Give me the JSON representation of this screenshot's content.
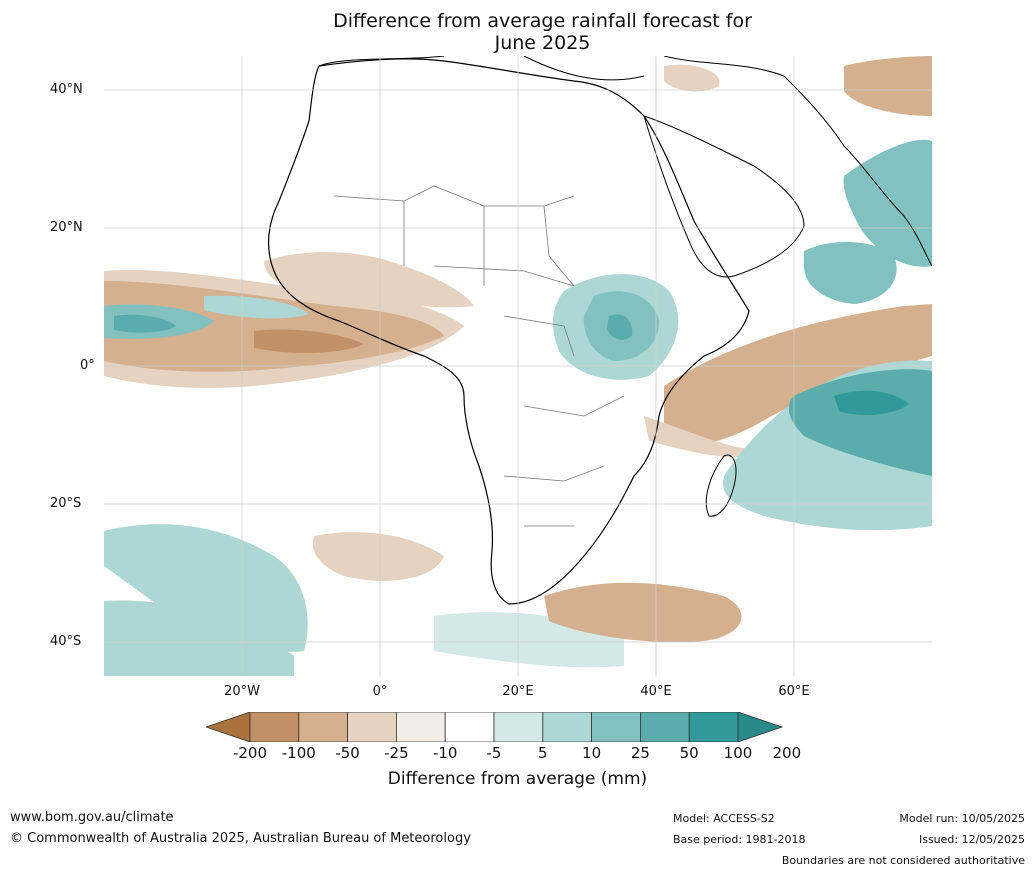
{
  "title": {
    "line1": "Difference from average rainfall forecast for",
    "line2": "June 2025"
  },
  "map": {
    "region": "Africa",
    "lat_ticks": [
      "40°N",
      "20°N",
      "0°",
      "20°S",
      "40°S"
    ],
    "lon_ticks": [
      "20°W",
      "0°",
      "20°E",
      "40°E",
      "60°E"
    ]
  },
  "legend": {
    "colors": [
      "#a8733e",
      "#c09068",
      "#d4b08f",
      "#e5d2c0",
      "#f2ece6",
      "#ffffff",
      "#d4e8e6",
      "#acd7d4",
      "#82c1bf",
      "#5aadab",
      "#31999a",
      "#2a8a8a"
    ],
    "ticks": [
      "-200",
      "-100",
      "-50",
      "-25",
      "-10",
      "-5",
      "5",
      "10",
      "25",
      "50",
      "100",
      "200"
    ],
    "title": "Difference from average (mm)"
  },
  "footer": {
    "website": "www.bom.gov.au/climate",
    "copyright": "© Commonwealth of Australia 2025, Australian Bureau of Meteorology",
    "model": "Model: ACCESS-S2",
    "base_period": "Base period: 1981-2018",
    "model_run": "Model run: 10/05/2025",
    "issued": "Issued: 12/05/2025",
    "disclaimer": "Boundaries are not considered authoritative"
  }
}
